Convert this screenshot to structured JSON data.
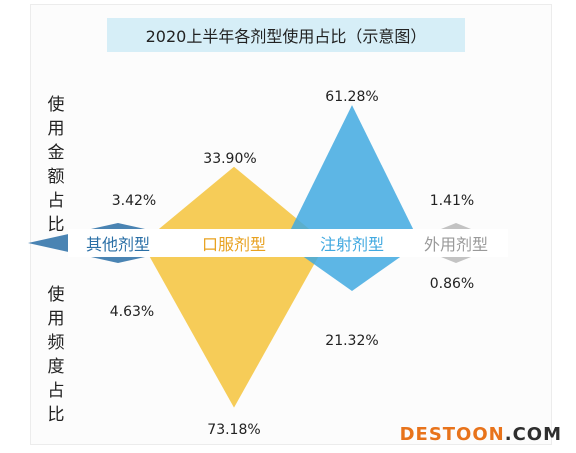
{
  "chart_data": {
    "type": "mirrored-triangle",
    "title": "2020上半年各剂型使用占比（示意图）",
    "upper_axis_label": "使用金额占比",
    "lower_axis_label": "使用频度占比",
    "categories": [
      "其他剂型",
      "口服剂型",
      "注射剂型",
      "外用剂型"
    ],
    "series": [
      {
        "name": "使用金额占比",
        "values": [
          3.42,
          33.9,
          61.28,
          1.41
        ]
      },
      {
        "name": "使用频度占比",
        "values": [
          4.63,
          73.18,
          21.32,
          0.86
        ]
      }
    ],
    "value_labels_upper": [
      "3.42%",
      "33.90%",
      "61.28%",
      "1.41%"
    ],
    "value_labels_lower": [
      "4.63%",
      "73.18%",
      "21.32%",
      "0.86%"
    ],
    "colors": [
      "#2a6fa6",
      "#f5c33b",
      "#41a9e0",
      "#b9b9b9"
    ],
    "label_colors": [
      "#2a6fa6",
      "#e8a221",
      "#41a9e0",
      "#9a9a9a"
    ],
    "title_bg": "#d6eef7"
  },
  "watermark": {
    "main": "DESTOON",
    "suffix": ".COM"
  }
}
